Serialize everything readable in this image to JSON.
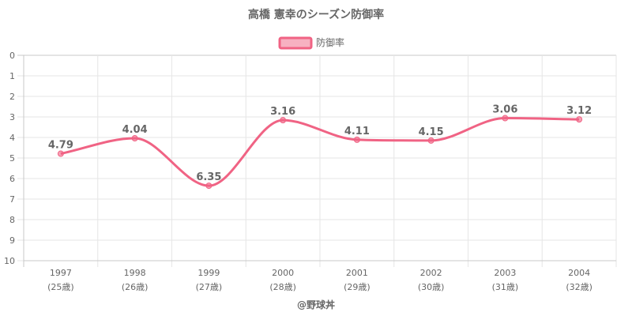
{
  "chart_data": {
    "type": "line",
    "title": "高橋 憲幸のシーズン防御率",
    "series": [
      {
        "name": "防御率",
        "color": "#f06384",
        "values": [
          4.79,
          4.04,
          6.35,
          3.16,
          4.11,
          4.15,
          3.06,
          3.12
        ],
        "labels": [
          "4.79",
          "4.04",
          "6.35",
          "3.16",
          "4.11",
          "4.15",
          "3.06",
          "3.12"
        ]
      }
    ],
    "categories": [
      "1997",
      "1998",
      "1999",
      "2000",
      "2001",
      "2002",
      "2003",
      "2004"
    ],
    "category_sublabels": [
      "(25歳)",
      "(26歳)",
      "(27歳)",
      "(28歳)",
      "(29歳)",
      "(30歳)",
      "(31歳)",
      "(32歳)"
    ],
    "y_ticks": [
      "0",
      "1",
      "2",
      "3",
      "4",
      "5",
      "6",
      "7",
      "8",
      "9",
      "10"
    ],
    "ylim": [
      0,
      10
    ],
    "y_reversed": true,
    "grid": true,
    "legend_position": "top-center",
    "credit": "@野球丼"
  }
}
